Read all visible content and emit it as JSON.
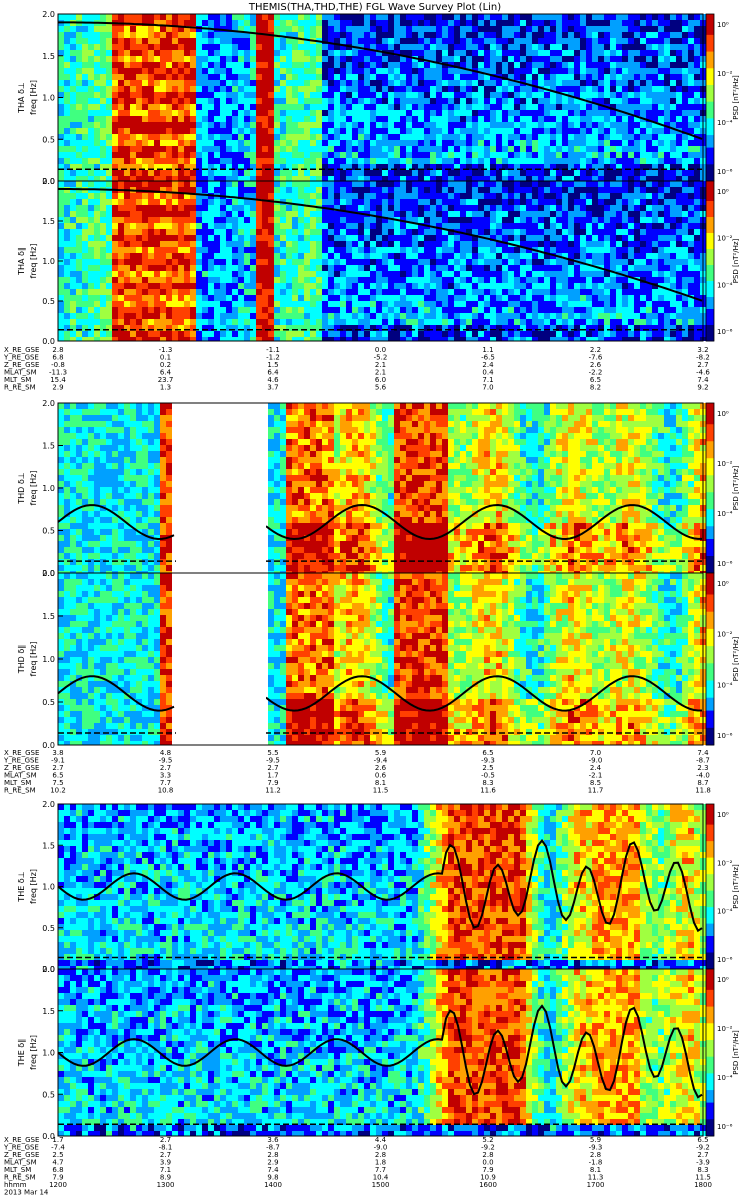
{
  "title": "THEMIS(THA,THD,THE) FGL Wave Survey Plot (Lin)",
  "colorbar": {
    "label": "PSD [nT²/Hz]",
    "ticks": [
      "10⁰",
      "10⁻²",
      "10⁻⁴",
      "10⁻⁶"
    ],
    "colormap": [
      "#000080",
      "#0000ff",
      "#00a0ff",
      "#00ffff",
      "#40ff80",
      "#a0ff40",
      "#ffff00",
      "#ffa000",
      "#ff4000",
      "#c00000"
    ]
  },
  "chart_data": [
    {
      "type": "heatmap",
      "probe": "THA",
      "panels": [
        {
          "ylabel": [
            "THA δ⊥",
            "freq [Hz]"
          ],
          "ylim": [
            0,
            2.0
          ],
          "yticks": [
            "0.0",
            "0.5",
            "1.0",
            "1.5",
            "2.0"
          ]
        },
        {
          "ylabel": [
            "THA δ∥",
            "freq [Hz]"
          ],
          "ylim": [
            0,
            2.0
          ],
          "yticks": [
            "0.0",
            "0.5",
            "1.0",
            "1.5",
            "2.0"
          ]
        }
      ],
      "ephemeris": [
        {
          "label": "X_RE_GSE",
          "values": [
            "2.8",
            "-1.3",
            "-1.1",
            "0.0",
            "1.1",
            "2.2",
            "3.2"
          ]
        },
        {
          "label": "Y_RE_GSE",
          "values": [
            "6.8",
            "0.1",
            "-1.2",
            "-5.2",
            "-6.5",
            "-7.6",
            "-8.2"
          ]
        },
        {
          "label": "Z_RE_GSE",
          "values": [
            "-0.8",
            "0.2",
            "1.5",
            "2.1",
            "2.4",
            "2.6",
            "2.7"
          ]
        },
        {
          "label": "MLAT_SM",
          "values": [
            "-11.3",
            "6.4",
            "6.4",
            "2.1",
            "0.4",
            "-2.2",
            "-4.6"
          ]
        },
        {
          "label": "MLT_SM",
          "values": [
            "15.4",
            "23.7",
            "4.6",
            "6.0",
            "7.1",
            "6.5",
            "7.4"
          ]
        },
        {
          "label": "R_RE_SM",
          "values": [
            "2.9",
            "1.3",
            "3.7",
            "5.6",
            "7.0",
            "8.2",
            "9.2"
          ]
        }
      ]
    },
    {
      "type": "heatmap",
      "probe": "THD",
      "panels": [
        {
          "ylabel": [
            "THD δ⊥",
            "freq [Hz]"
          ],
          "ylim": [
            0,
            2.0
          ],
          "yticks": [
            "0.0",
            "0.5",
            "1.0",
            "1.5",
            "2.0"
          ]
        },
        {
          "ylabel": [
            "THD δ∥",
            "freq [Hz]"
          ],
          "ylim": [
            0,
            2.0
          ],
          "yticks": [
            "0.0",
            "0.5",
            "1.0",
            "1.5",
            "2.0"
          ]
        }
      ],
      "ephemeris": [
        {
          "label": "X_RE_GSE",
          "values": [
            "3.8",
            "4.8",
            "5.5",
            "5.9",
            "6.5",
            "7.0",
            "7.4"
          ]
        },
        {
          "label": "Y_RE_GSE",
          "values": [
            "-9.1",
            "-9.5",
            "-9.5",
            "-9.4",
            "-9.3",
            "-9.0",
            "-8.7"
          ]
        },
        {
          "label": "Z_RE_GSE",
          "values": [
            "2.7",
            "2.7",
            "2.7",
            "2.6",
            "2.5",
            "2.4",
            "2.3"
          ]
        },
        {
          "label": "MLAT_SM",
          "values": [
            "6.5",
            "3.3",
            "1.7",
            "0.6",
            "-0.5",
            "-2.1",
            "-4.0"
          ]
        },
        {
          "label": "MLT_SM",
          "values": [
            "7.5",
            "7.7",
            "7.9",
            "8.1",
            "8.3",
            "8.5",
            "8.7"
          ]
        },
        {
          "label": "R_RE_SM",
          "values": [
            "10.2",
            "10.8",
            "11.2",
            "11.5",
            "11.6",
            "11.7",
            "11.8"
          ]
        }
      ]
    },
    {
      "type": "heatmap",
      "probe": "THE",
      "panels": [
        {
          "ylabel": [
            "THE δ⊥",
            "freq [Hz]"
          ],
          "ylim": [
            0,
            2.0
          ],
          "yticks": [
            "0.0",
            "0.5",
            "1.0",
            "1.5",
            "2.0"
          ]
        },
        {
          "ylabel": [
            "THE δ∥",
            "freq [Hz]"
          ],
          "ylim": [
            0,
            2.0
          ],
          "yticks": [
            "0.0",
            "0.5",
            "1.0",
            "1.5",
            "2.0"
          ]
        }
      ],
      "ephemeris": [
        {
          "label": "X_RE_GSE",
          "values": [
            "1.7",
            "2.7",
            "3.6",
            "4.4",
            "5.2",
            "5.9",
            "6.5"
          ]
        },
        {
          "label": "Y_RE_GSE",
          "values": [
            "-7.4",
            "-8.1",
            "-8.7",
            "-9.0",
            "-9.2",
            "-9.3",
            "-9.2"
          ]
        },
        {
          "label": "Z_RE_GSE",
          "values": [
            "2.5",
            "2.7",
            "2.8",
            "2.8",
            "2.8",
            "2.8",
            "2.7"
          ]
        },
        {
          "label": "MLAT_SM",
          "values": [
            "4.7",
            "3.9",
            "2.9",
            "1.8",
            "0.0",
            "-1.8",
            "-3.9"
          ]
        },
        {
          "label": "MLT_SM",
          "values": [
            "6.8",
            "7.1",
            "7.4",
            "7.7",
            "7.9",
            "8.1",
            "8.3"
          ]
        },
        {
          "label": "R_RE_SM",
          "values": [
            "7.9",
            "8.9",
            "9.8",
            "10.4",
            "10.9",
            "11.3",
            "11.5"
          ]
        },
        {
          "label": "hhmm",
          "values": [
            "1200",
            "1300",
            "1400",
            "1500",
            "1600",
            "1700",
            "1800"
          ]
        }
      ],
      "date": "2013 Mar 14"
    }
  ]
}
